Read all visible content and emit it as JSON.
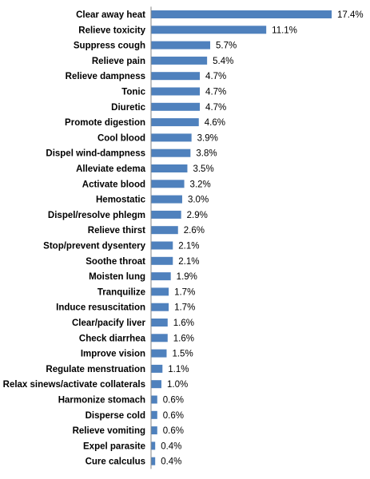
{
  "colors": {
    "bar": "#4f81bd",
    "axis": "#868686",
    "text": "#000000"
  },
  "chart_data": {
    "type": "bar",
    "orientation": "horizontal",
    "title": "",
    "xlabel": "",
    "ylabel": "",
    "xlim": [
      0,
      17.4
    ],
    "grid": false,
    "legend": "none",
    "categories": [
      "Clear away heat",
      "Relieve toxicity",
      "Suppress cough",
      "Relieve pain",
      "Relieve dampness",
      "Tonic",
      "Diuretic",
      "Promote digestion",
      "Cool blood",
      "Dispel wind-dampness",
      "Alleviate edema",
      "Activate blood",
      "Hemostatic",
      "Dispel/resolve phlegm",
      "Relieve thirst",
      "Stop/prevent dysentery",
      "Soothe throat",
      "Moisten lung",
      "Tranquilize",
      "Induce resuscitation",
      "Clear/pacify liver",
      "Check diarrhea",
      "Improve vision",
      "Regulate menstruation",
      "Relax sinews/activate collaterals",
      "Harmonize stomach",
      "Disperse cold",
      "Relieve vomiting",
      "Expel parasite",
      "Cure calculus"
    ],
    "values": [
      17.4,
      11.1,
      5.7,
      5.4,
      4.7,
      4.7,
      4.7,
      4.6,
      3.9,
      3.8,
      3.5,
      3.2,
      3.0,
      2.9,
      2.6,
      2.1,
      2.1,
      1.9,
      1.7,
      1.7,
      1.6,
      1.6,
      1.5,
      1.1,
      1.0,
      0.6,
      0.6,
      0.6,
      0.4,
      0.4
    ],
    "value_labels": [
      "17.4%",
      "11.1%",
      "5.7%",
      "5.4%",
      "4.7%",
      "4.7%",
      "4.7%",
      "4.6%",
      "3.9%",
      "3.8%",
      "3.5%",
      "3.2%",
      "3.0%",
      "2.9%",
      "2.6%",
      "2.1%",
      "2.1%",
      "1.9%",
      "1.7%",
      "1.7%",
      "1.6%",
      "1.6%",
      "1.5%",
      "1.1%",
      "1.0%",
      "0.6%",
      "0.6%",
      "0.6%",
      "0.4%",
      "0.4%"
    ]
  }
}
